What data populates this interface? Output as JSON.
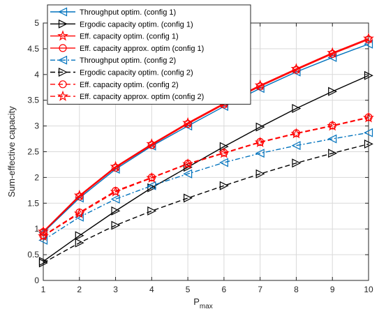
{
  "chart_data": {
    "type": "line",
    "xlabel": "P",
    "xlabel_sub": "max",
    "ylabel": "Sum-effective capacity",
    "xlim": [
      1,
      10
    ],
    "ylim": [
      0,
      5
    ],
    "xticks": [
      "1",
      "2",
      "3",
      "4",
      "5",
      "6",
      "7",
      "8",
      "9",
      "10"
    ],
    "yticks": [
      "0",
      "0.5",
      "1",
      "1.5",
      "2",
      "2.5",
      "3",
      "3.5",
      "4",
      "4.5",
      "5"
    ],
    "grid": true,
    "legend_position": "top-left",
    "x": [
      1,
      2,
      3,
      4,
      5,
      6,
      7,
      8,
      9,
      10
    ],
    "series": [
      {
        "name": "Throughput optim. (config 1)",
        "color": "#0072BD",
        "dash": "solid",
        "marker": "triangle-left",
        "values": [
          0.93,
          1.6,
          2.16,
          2.61,
          3.0,
          3.38,
          3.73,
          4.05,
          4.33,
          4.59
        ]
      },
      {
        "name": "Ergodic capacity optim. (config 1)",
        "color": "#000000",
        "dash": "solid",
        "marker": "triangle-right",
        "values": [
          0.37,
          0.87,
          1.35,
          1.8,
          2.2,
          2.6,
          2.98,
          3.34,
          3.67,
          3.98
        ]
      },
      {
        "name": "Eff. capacity optim. (config 1)",
        "color": "#FF0000",
        "dash": "solid",
        "marker": "star",
        "values": [
          0.95,
          1.65,
          2.21,
          2.65,
          3.06,
          3.44,
          3.79,
          4.11,
          4.42,
          4.7
        ]
      },
      {
        "name": "Eff. capacity approx. optim (config 1)",
        "color": "#FF0000",
        "dash": "solid",
        "marker": "circle",
        "values": [
          0.94,
          1.63,
          2.19,
          2.63,
          3.04,
          3.42,
          3.77,
          4.09,
          4.4,
          4.68
        ]
      },
      {
        "name": "Throughput optim. (config 2)",
        "color": "#0072BD",
        "dash": "dashdot",
        "marker": "triangle-left",
        "values": [
          0.78,
          1.23,
          1.58,
          1.84,
          2.07,
          2.29,
          2.47,
          2.62,
          2.75,
          2.87
        ]
      },
      {
        "name": "Ergodic capacity optim. (config 2)",
        "color": "#000000",
        "dash": "dashed",
        "marker": "triangle-right",
        "values": [
          0.34,
          0.73,
          1.07,
          1.35,
          1.6,
          1.84,
          2.07,
          2.28,
          2.47,
          2.65
        ]
      },
      {
        "name": "Eff. capacity optim. (config 2)",
        "color": "#FF0000",
        "dash": "dashed",
        "marker": "circle",
        "values": [
          0.87,
          1.32,
          1.74,
          2.0,
          2.27,
          2.48,
          2.69,
          2.86,
          3.01,
          3.17
        ]
      },
      {
        "name": "Eff. capacity approx. optim (config 2)",
        "color": "#FF0000",
        "dash": "dashed",
        "marker": "star",
        "values": [
          0.86,
          1.3,
          1.72,
          1.99,
          2.26,
          2.47,
          2.68,
          2.85,
          3.0,
          3.16
        ]
      }
    ]
  }
}
